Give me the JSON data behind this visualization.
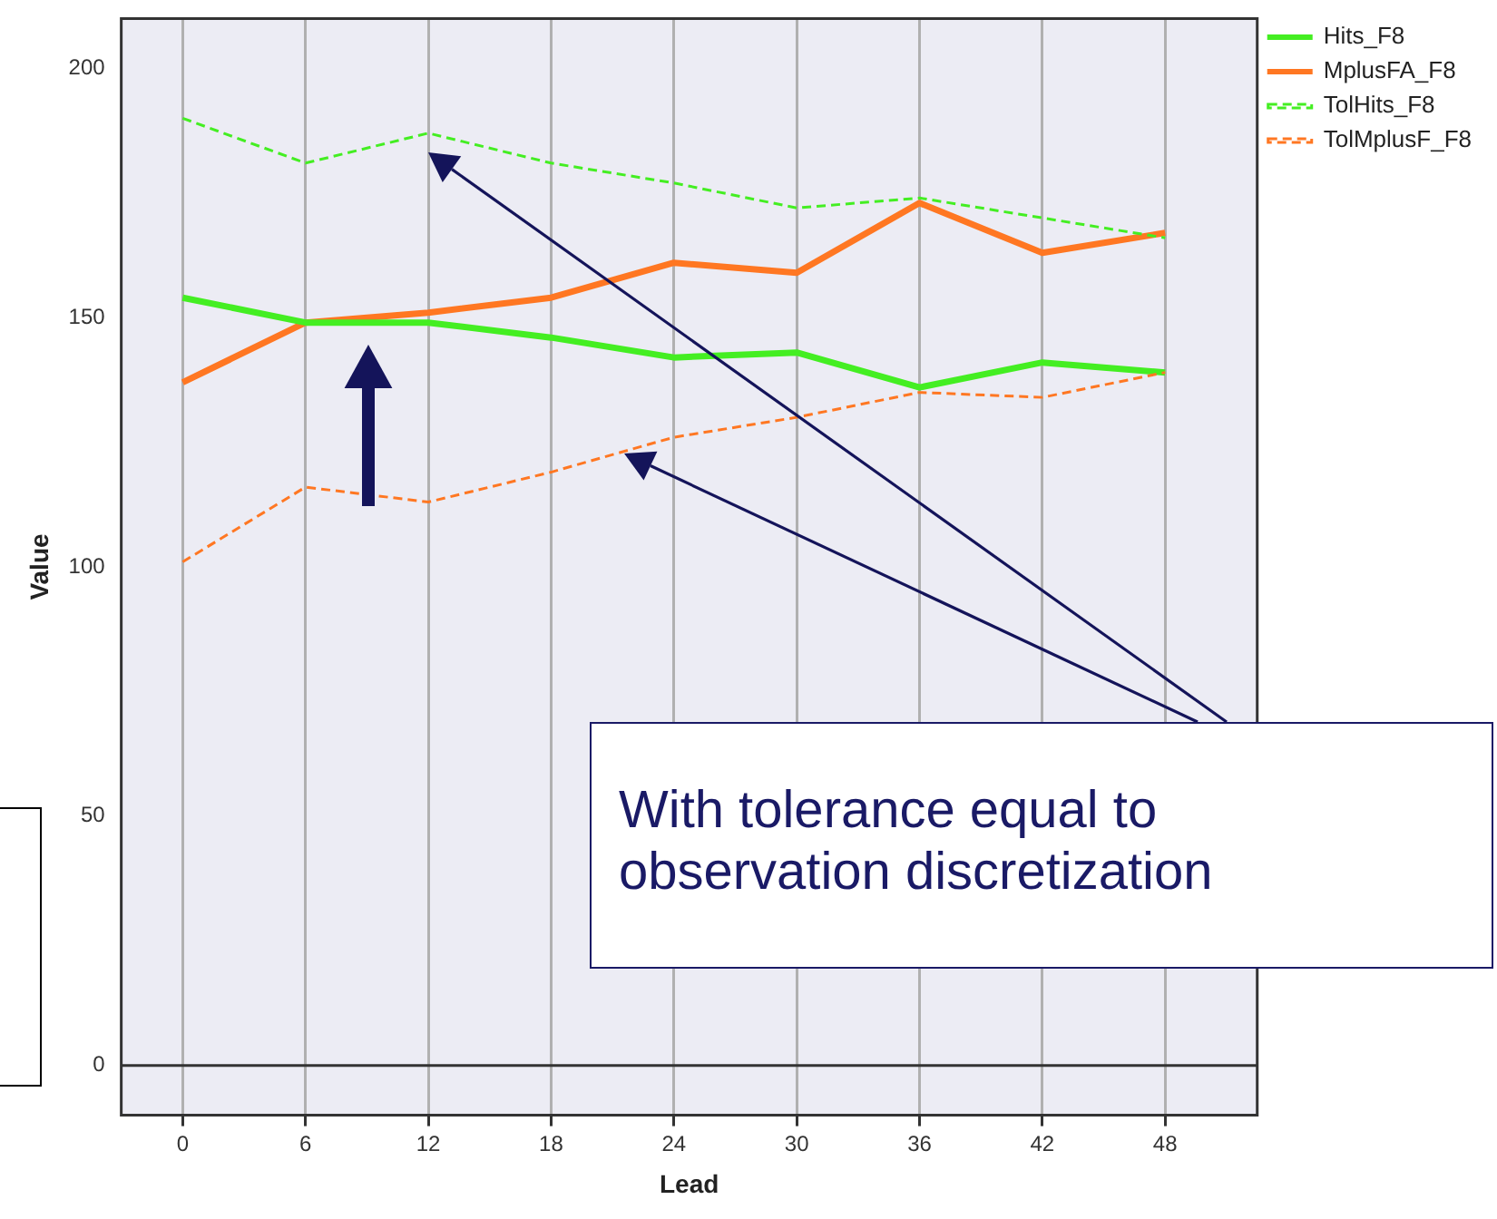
{
  "chart_data": {
    "type": "line",
    "xlabel": "Lead",
    "ylabel": "Value",
    "x": [
      0,
      6,
      12,
      18,
      24,
      30,
      36,
      42,
      48
    ],
    "series": [
      {
        "name": "Hits_F8",
        "color": "#44ee22",
        "line_style": "solid",
        "values": [
          154,
          149,
          149,
          146,
          142,
          143,
          136,
          141,
          139
        ]
      },
      {
        "name": "MplusFA_F8",
        "color": "#ff7722",
        "line_style": "solid",
        "values": [
          137,
          149,
          151,
          154,
          161,
          159,
          173,
          163,
          167
        ]
      },
      {
        "name": "TolHits_F8",
        "color": "#44ee22",
        "line_style": "dashed",
        "values": [
          190,
          181,
          187,
          181,
          177,
          172,
          174,
          170,
          166
        ]
      },
      {
        "name": "TolMplusF_F8",
        "color": "#ff7722",
        "line_style": "dashed",
        "values": [
          101,
          116,
          113,
          119,
          126,
          130,
          135,
          134,
          139
        ]
      }
    ],
    "xlim": [
      -3,
      52.5
    ],
    "ylim": [
      -10,
      210
    ],
    "xticks": [
      0,
      6,
      12,
      18,
      24,
      30,
      36,
      42,
      48
    ],
    "yticks": [
      0,
      50,
      100,
      150,
      200
    ],
    "grid": "x",
    "legend": "top right",
    "marker": "none",
    "ref_lines": [
      {
        "axis": "y",
        "value": 0,
        "color": "#333333"
      }
    ],
    "annotations": [
      "With tolerance equal to observation discretization"
    ]
  }
}
